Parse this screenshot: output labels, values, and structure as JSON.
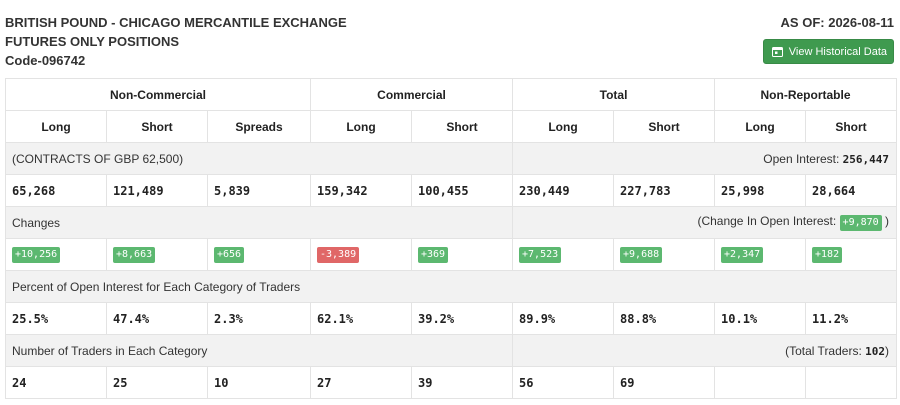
{
  "header": {
    "title_line1": "BRITISH POUND - CHICAGO MERCANTILE EXCHANGE",
    "title_line2": "FUTURES ONLY POSITIONS",
    "code": "Code-096742",
    "as_of": "AS OF: 2026-08-11",
    "history_button": "View Historical Data",
    "history_icon": "calendar-icon"
  },
  "colors": {
    "positive": "#5cb870",
    "negative": "#e06767",
    "button": "#3f9a4f"
  },
  "groups": [
    "Non-Commercial",
    "Commercial",
    "Total",
    "Non-Reportable"
  ],
  "subheaders": [
    "Long",
    "Short",
    "Spreads",
    "Long",
    "Short",
    "Long",
    "Short",
    "Long",
    "Short"
  ],
  "contracts": {
    "label": "(CONTRACTS OF GBP 62,500)",
    "open_interest_label": "Open Interest:",
    "open_interest_value": "256,447",
    "values": [
      "65,268",
      "121,489",
      "5,839",
      "159,342",
      "100,455",
      "230,449",
      "227,783",
      "25,998",
      "28,664"
    ]
  },
  "changes": {
    "label": "Changes",
    "coi_label": "(Change In Open Interest:",
    "coi_value": "+9,870",
    "coi_close": ")",
    "values": [
      "+10,256",
      "+8,663",
      "+656",
      "-3,389",
      "+369",
      "+7,523",
      "+9,688",
      "+2,347",
      "+182"
    ]
  },
  "percent": {
    "label": "Percent of Open Interest for Each Category of Traders",
    "values": [
      "25.5%",
      "47.4%",
      "2.3%",
      "62.1%",
      "39.2%",
      "89.9%",
      "88.8%",
      "10.1%",
      "11.2%"
    ]
  },
  "traders": {
    "label": "Number of Traders in Each Category",
    "total_label": "(Total Traders:",
    "total_value": "102",
    "total_close": ")",
    "values": [
      "24",
      "25",
      "10",
      "27",
      "39",
      "56",
      "69",
      "",
      ""
    ]
  }
}
